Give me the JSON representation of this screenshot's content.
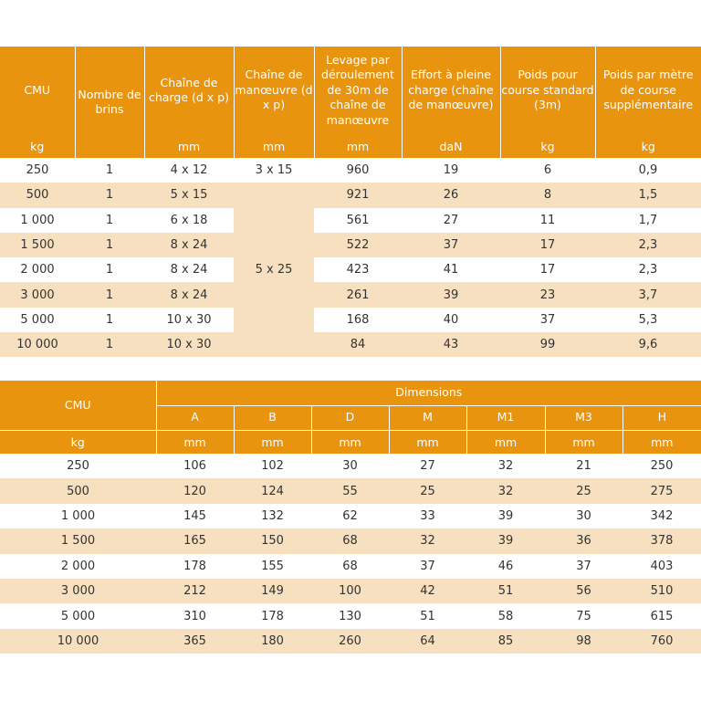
{
  "table1": {
    "headers": [
      "CMU",
      "Nombre de brins",
      "Chaîne de charge (d x p)",
      "Chaîne de manœuvre (d x p)",
      "Levage par déroulement de 30m de chaîne de manœuvre",
      "Effort à pleine charge (chaîne de manœuvre)",
      "Poids pour course standard (3m)",
      "Poids par mètre de course supplémentaire"
    ],
    "units": [
      "kg",
      "mm",
      "mm",
      "mm",
      "daN",
      "kg",
      "kg"
    ],
    "rows": [
      [
        "250",
        "1",
        "4 x 12",
        "3 x 15",
        "960",
        "19",
        "6",
        "0,9"
      ],
      [
        "500",
        "1",
        "5 x 15",
        "",
        "921",
        "26",
        "8",
        "1,5"
      ],
      [
        "1 000",
        "1",
        "6 x 18",
        "",
        "561",
        "27",
        "11",
        "1,7"
      ],
      [
        "1 500",
        "1",
        "8 x 24",
        "",
        "522",
        "37",
        "17",
        "2,3"
      ],
      [
        "2 000",
        "1",
        "8 x 24",
        "",
        "423",
        "41",
        "17",
        "2,3"
      ],
      [
        "3 000",
        "1",
        "8 x 24",
        "",
        "261",
        "39",
        "23",
        "3,7"
      ],
      [
        "5 000",
        "1",
        "10 x 30",
        "",
        "168",
        "40",
        "37",
        "5,3"
      ],
      [
        "10 000",
        "1",
        "10 x 30",
        "",
        "84",
        "43",
        "99",
        "9,6"
      ]
    ],
    "merged_chain": "5 x 25"
  },
  "table2": {
    "cmu_header": "CMU",
    "group_header": "Dimensions",
    "columns": [
      "A",
      "B",
      "D",
      "M",
      "M1",
      "M3",
      "H"
    ],
    "units": [
      "kg",
      "mm",
      "mm",
      "mm",
      "mm",
      "mm",
      "mm",
      "mm"
    ],
    "rows": [
      [
        "250",
        "106",
        "102",
        "30",
        "27",
        "32",
        "21",
        "250"
      ],
      [
        "500",
        "120",
        "124",
        "55",
        "25",
        "32",
        "25",
        "275"
      ],
      [
        "1 000",
        "145",
        "132",
        "62",
        "33",
        "39",
        "30",
        "342"
      ],
      [
        "1 500",
        "165",
        "150",
        "68",
        "32",
        "39",
        "36",
        "378"
      ],
      [
        "2 000",
        "178",
        "155",
        "68",
        "37",
        "46",
        "37",
        "403"
      ],
      [
        "3 000",
        "212",
        "149",
        "100",
        "42",
        "51",
        "56",
        "510"
      ],
      [
        "5 000",
        "310",
        "178",
        "130",
        "51",
        "58",
        "75",
        "615"
      ],
      [
        "10 000",
        "365",
        "180",
        "260",
        "64",
        "85",
        "98",
        "760"
      ]
    ]
  }
}
